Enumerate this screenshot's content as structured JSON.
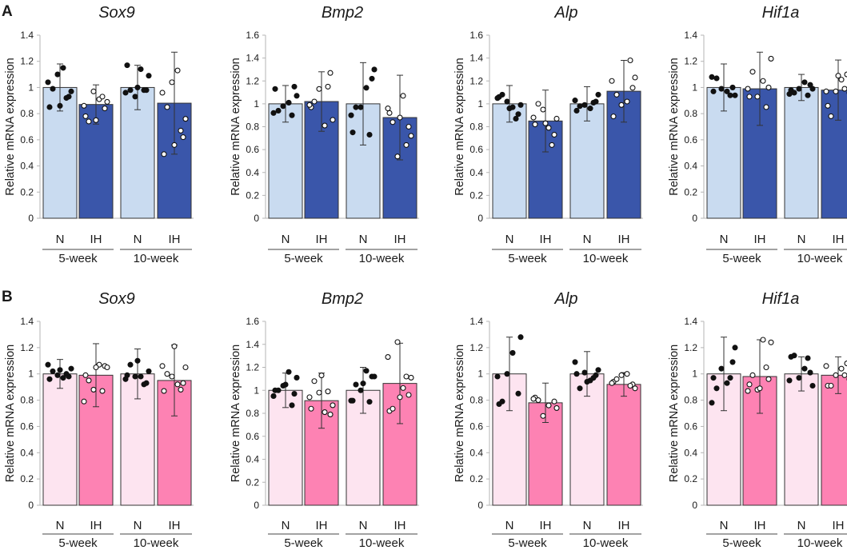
{
  "panels": [
    {
      "letter": "A",
      "fill_n": "#c9dbf0",
      "fill_ih": "#3a56aa"
    },
    {
      "letter": "B",
      "fill_n": "#fde4f0",
      "fill_ih": "#fd82b3"
    }
  ],
  "chart_data": [
    {
      "type": "bar",
      "panel": "A",
      "title": "Sox9",
      "ylabel": "Relative mRNA expression",
      "ylim": [
        0,
        1.4
      ],
      "yticks": [
        0,
        0.2,
        0.4,
        0.6,
        0.8,
        1,
        1.2,
        1.4
      ],
      "categories": [
        "N",
        "IH",
        "N",
        "IH"
      ],
      "groups": [
        "5-week",
        "10-week"
      ],
      "values": [
        1.0,
        0.87,
        1.0,
        0.88
      ],
      "errors": [
        0.18,
        0.15,
        0.17,
        0.39
      ],
      "points": [
        [
          0.85,
          0.93,
          1.1,
          0.97,
          0.99,
          1.15,
          1.04,
          0.92,
          0.86
        ],
        [
          0.78,
          0.84,
          0.97,
          0.89,
          0.74,
          0.91,
          0.86,
          0.93,
          0.75
        ],
        [
          1.17,
          0.98,
          0.93,
          1.09,
          0.98,
          1.14,
          0.96,
          0.98,
          1.0
        ],
        [
          0.49,
          0.62,
          1.04,
          0.76,
          0.85,
          1.13,
          0.96,
          0.67,
          0.56
        ]
      ]
    },
    {
      "type": "bar",
      "panel": "A",
      "title": "Bmp2",
      "ylabel": "Relative mRNA expression",
      "ylim": [
        0,
        1.6
      ],
      "yticks": [
        0,
        0.2,
        0.4,
        0.6,
        0.8,
        1,
        1.2,
        1.4,
        1.6
      ],
      "categories": [
        "N",
        "IH",
        "N",
        "IH"
      ],
      "groups": [
        "5-week",
        "10-week"
      ],
      "values": [
        1.0,
        1.02,
        1.0,
        0.88
      ],
      "errors": [
        0.16,
        0.26,
        0.36,
        0.37
      ],
      "points": [
        [
          1.13,
          1.15,
          0.98,
          1.07,
          0.94,
          1.01,
          0.92,
          0.9
        ],
        [
          0.97,
          1.27,
          1.13,
          0.86,
          1.02,
          0.81,
          0.99,
          1.15
        ],
        [
          0.75,
          1.22,
          0.97,
          1.3,
          0.97,
          1.14,
          0.9,
          0.73
        ],
        [
          0.92,
          0.8,
          0.54,
          0.72,
          0.84,
          1.07,
          0.96,
          0.64,
          0.88
        ]
      ]
    },
    {
      "type": "bar",
      "panel": "A",
      "title": "Alp",
      "ylabel": "Relative mRNA expression",
      "ylim": [
        0,
        1.6
      ],
      "yticks": [
        0,
        0.2,
        0.4,
        0.6,
        0.8,
        1,
        1.2,
        1.4,
        1.6
      ],
      "categories": [
        "N",
        "IH",
        "N",
        "IH"
      ],
      "groups": [
        "5-week",
        "10-week"
      ],
      "values": [
        1.0,
        0.85,
        1.0,
        1.11
      ],
      "errors": [
        0.16,
        0.27,
        0.15,
        0.27
      ],
      "points": [
        [
          1.06,
          0.91,
          1.02,
          0.99,
          1.08,
          0.97,
          1.05,
          0.87,
          0.96
        ],
        [
          0.82,
          0.73,
          0.95,
          0.87,
          1.0,
          0.79,
          0.88,
          0.64,
          0.83
        ],
        [
          0.94,
          1.02,
          0.99,
          1.08,
          0.98,
          0.96,
          1.03,
          1.01
        ],
        [
          0.89,
          1.14,
          0.99,
          1.23,
          1.08,
          1.02,
          1.2,
          1.38
        ]
      ]
    },
    {
      "type": "bar",
      "panel": "A",
      "title": "Hif1a",
      "ylabel": "Relative mRNA expression",
      "ylim": [
        0,
        1.4
      ],
      "yticks": [
        0,
        0.2,
        0.4,
        0.6,
        0.8,
        1,
        1.2,
        1.4
      ],
      "categories": [
        "N",
        "IH",
        "N",
        "IH"
      ],
      "groups": [
        "5-week",
        "10-week"
      ],
      "values": [
        1.0,
        0.99,
        1.0,
        0.98
      ],
      "errors": [
        0.18,
        0.28,
        0.1,
        0.23
      ],
      "points": [
        [
          0.97,
          1.0,
          0.99,
          0.94,
          1.07,
          0.97,
          1.08,
          0.94
        ],
        [
          0.93,
          1.0,
          0.93,
          1.22,
          1.12,
          1.05,
          0.99,
          0.85
        ],
        [
          0.98,
          1.02,
          0.99,
          0.99,
          0.96,
          1.04,
          0.95,
          0.94
        ],
        [
          0.86,
          1.1,
          0.97,
          0.96,
          0.78,
          1.06,
          0.97,
          0.99,
          1.09
        ]
      ]
    },
    {
      "type": "bar",
      "panel": "B",
      "title": "Sox9",
      "ylabel": "Relative mRNA expression",
      "ylim": [
        0,
        1.4
      ],
      "yticks": [
        0,
        0.2,
        0.4,
        0.6,
        0.8,
        1,
        1.2,
        1.4
      ],
      "categories": [
        "N",
        "IH",
        "N",
        "IH"
      ],
      "groups": [
        "5-week",
        "10-week"
      ],
      "values": [
        1.0,
        0.99,
        1.0,
        0.95
      ],
      "errors": [
        0.11,
        0.24,
        0.19,
        0.27
      ],
      "points": [
        [
          0.96,
          0.98,
          0.99,
          1.04,
          1.02,
          0.97,
          1.07,
          1.0,
          1.03
        ],
        [
          0.99,
          1.06,
          0.88,
          1.05,
          0.95,
          1.07,
          0.79,
          0.87,
          1.05
        ],
        [
          0.99,
          0.93,
          0.98,
          1.02,
          1.07,
          0.98,
          0.96,
          0.92,
          1.1
        ],
        [
          0.87,
          0.93,
          0.98,
          1.05,
          1.0,
          0.92,
          1.06,
          0.88,
          1.21
        ]
      ]
    },
    {
      "type": "bar",
      "panel": "B",
      "title": "Bmp2",
      "ylabel": "Relative mRNA expression",
      "ylim": [
        0,
        1.6
      ],
      "yticks": [
        0,
        0.2,
        0.4,
        0.6,
        0.8,
        1,
        1.2,
        1.4,
        1.6
      ],
      "categories": [
        "N",
        "IH",
        "N",
        "IH"
      ],
      "groups": [
        "5-week",
        "10-week"
      ],
      "values": [
        1.0,
        0.91,
        1.0,
        1.06
      ],
      "errors": [
        0.15,
        0.24,
        0.2,
        0.35
      ],
      "points": [
        [
          1.0,
          0.97,
          1.04,
          1.11,
          1.0,
          1.16,
          0.95,
          0.87,
          1.05
        ],
        [
          0.84,
          0.79,
          0.98,
          0.87,
          1.08,
          0.81,
          0.94,
          0.99,
          1.13
        ],
        [
          0.91,
          1.12,
          1.0,
          1.12,
          1.05,
          1.17,
          0.91,
          0.9,
          1.06
        ],
        [
          0.82,
          0.96,
          1.42,
          1.11,
          0.84,
          1.02,
          1.29,
          1.12,
          0.94
        ]
      ]
    },
    {
      "type": "bar",
      "panel": "B",
      "title": "Alp",
      "ylabel": "Relative mRNA expression",
      "ylim": [
        0,
        1.4
      ],
      "yticks": [
        0,
        0.2,
        0.4,
        0.6,
        0.8,
        1,
        1.2,
        1.4
      ],
      "categories": [
        "N",
        "IH",
        "N",
        "IH"
      ],
      "groups": [
        "5-week",
        "10-week"
      ],
      "values": [
        1.0,
        0.78,
        1.0,
        0.92
      ],
      "errors": [
        0.28,
        0.15,
        0.17,
        0.09
      ],
      "points": [
        [
          0.77,
          0.85,
          1.0,
          1.28,
          0.79,
          1.16,
          0.98
        ],
        [
          0.82,
          0.79,
          0.68,
          0.74,
          0.8,
          0.76,
          0.81
        ],
        [
          1.0,
          0.99,
          1.01,
          1.03,
          0.89,
          0.95,
          1.09,
          0.97,
          0.94
        ],
        [
          0.94,
          0.92,
          0.99,
          0.89,
          0.96,
          1.0,
          0.93,
          0.91
        ]
      ]
    },
    {
      "type": "bar",
      "panel": "B",
      "title": "Hif1a",
      "ylabel": "Relative mRNA expression",
      "ylim": [
        0,
        1.4
      ],
      "yticks": [
        0,
        0.2,
        0.4,
        0.6,
        0.8,
        1,
        1.2,
        1.4
      ],
      "categories": [
        "N",
        "IH",
        "N",
        "IH"
      ],
      "groups": [
        "5-week",
        "10-week"
      ],
      "values": [
        1.0,
        0.98,
        1.0,
        0.99
      ],
      "errors": [
        0.28,
        0.28,
        0.13,
        0.14
      ],
      "points": [
        [
          0.97,
          1.09,
          1.04,
          1.2,
          0.89,
          0.93,
          0.78,
          0.97
        ],
        [
          0.92,
          0.96,
          0.88,
          1.24,
          0.99,
          1.26,
          0.87,
          1.05,
          0.89
        ],
        [
          1.13,
          1.01,
          0.97,
          0.91,
          1.14,
          1.04,
          0.95,
          1.12
        ],
        [
          0.91,
          1.08,
          0.99,
          0.96,
          0.91,
          1.04,
          1.06,
          0.99
        ]
      ]
    }
  ]
}
